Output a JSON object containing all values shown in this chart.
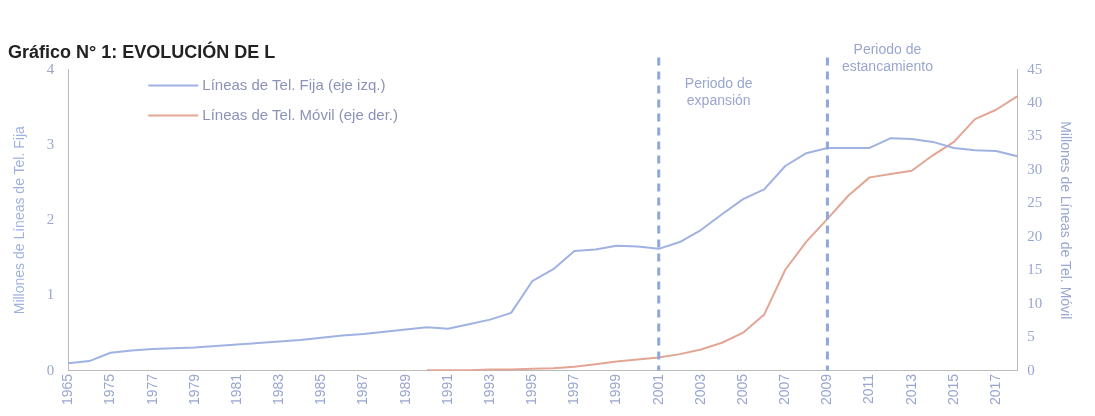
{
  "chart_data": {
    "type": "line",
    "title": "Gráfico N° 1: EVOLUCIÓN DE L",
    "ylabel": "Millones de Líneas de Tel. Fija",
    "y2label": "Millones de Líneas de Tel. Móvil",
    "categories": [
      "1965",
      null,
      "1975",
      null,
      "1977",
      null,
      "1979",
      null,
      "1981",
      null,
      "1983",
      null,
      "1985",
      null,
      "1987",
      null,
      "1989",
      null,
      "1991",
      null,
      "1993",
      null,
      "1995",
      null,
      "1997",
      null,
      "1999",
      null,
      "2001",
      null,
      "2003",
      null,
      "2005",
      null,
      "2007",
      null,
      "2009",
      null,
      "2011",
      null,
      "2013",
      null,
      "2015",
      null,
      "2017",
      null
    ],
    "series": [
      {
        "name": "Líneas de Tel. Fija (eje izq.)",
        "color": "#9fb2e2",
        "values": [
          0.1,
          0.13,
          0.24,
          0.27,
          0.29,
          0.3,
          0.31,
          0.33,
          0.35,
          0.37,
          0.39,
          0.41,
          0.44,
          0.47,
          0.49,
          0.52,
          0.55,
          0.58,
          0.56,
          0.62,
          0.68,
          0.77,
          1.19,
          1.35,
          1.59,
          1.61,
          1.66,
          1.65,
          1.62,
          1.71,
          1.87,
          2.08,
          2.28,
          2.41,
          2.72,
          2.89,
          2.96,
          2.96,
          2.96,
          3.09,
          3.08,
          3.04,
          2.96,
          2.93,
          2.92,
          2.85
        ]
      },
      {
        "name": "Líneas de Tel. Móvil (eje der.)",
        "color": "#e3a594",
        "axis": "y2",
        "values": [
          null,
          null,
          null,
          null,
          null,
          null,
          null,
          null,
          null,
          null,
          null,
          null,
          null,
          null,
          null,
          null,
          null,
          0.1,
          0.1,
          0.1,
          0.2,
          0.2,
          0.3,
          0.4,
          0.6,
          1.0,
          1.4,
          1.7,
          2.0,
          2.5,
          3.2,
          4.2,
          5.7,
          8.4,
          15.1,
          19.3,
          22.7,
          26.2,
          28.9,
          29.4,
          29.9,
          32.2,
          34.2,
          37.6,
          39.0,
          41.0
        ]
      }
    ],
    "ylim": [
      0,
      4
    ],
    "yticks": [
      0,
      1,
      2,
      3,
      4
    ],
    "y2lim": [
      0,
      45
    ],
    "y2ticks": [
      0,
      5,
      10,
      15,
      20,
      25,
      30,
      35,
      40,
      45
    ],
    "ref_lines": [
      {
        "axis": "x",
        "value": "2001",
        "label": "Periodo de expansión",
        "color": "#8fa8dc",
        "line_style": "dashed"
      },
      {
        "axis": "x",
        "value": "2009",
        "label": "Periodo de estancamiento",
        "color": "#8fa8dc",
        "line_style": "dashed"
      }
    ],
    "grid": false,
    "legend": "top left",
    "marker": "none",
    "line_style": "solid"
  }
}
